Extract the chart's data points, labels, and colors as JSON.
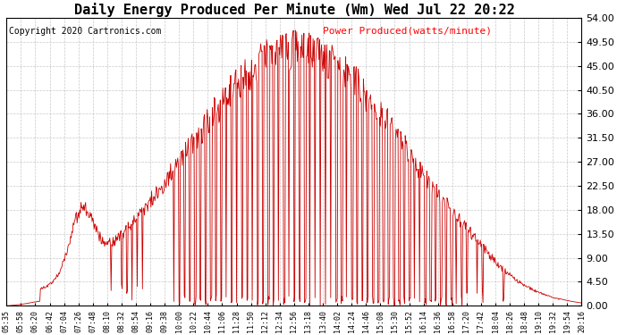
{
  "title": "Daily Energy Produced Per Minute (Wm) Wed Jul 22 20:22",
  "copyright": "Copyright 2020 Cartronics.com",
  "legend_label": "Power Produced(watts/minute)",
  "legend_color": "#ff0000",
  "line_color": "#cc0000",
  "background_color": "#ffffff",
  "plot_bg_color": "#ffffff",
  "grid_color": "#aaaaaa",
  "title_fontsize": 11,
  "copyright_fontsize": 7,
  "legend_fontsize": 8,
  "ytick_fontsize": 8,
  "xtick_fontsize": 6,
  "ymin": 0.0,
  "ymax": 54.0,
  "yticks": [
    0.0,
    4.5,
    9.0,
    13.5,
    18.0,
    22.5,
    27.0,
    31.5,
    36.0,
    40.5,
    45.0,
    49.5,
    54.0
  ],
  "xtick_labels": [
    "05:35",
    "05:58",
    "06:20",
    "06:42",
    "07:04",
    "07:26",
    "07:48",
    "08:10",
    "08:32",
    "08:54",
    "09:16",
    "09:38",
    "10:00",
    "10:22",
    "10:44",
    "11:06",
    "11:28",
    "11:50",
    "12:12",
    "12:34",
    "12:56",
    "13:18",
    "13:40",
    "14:02",
    "14:24",
    "14:46",
    "15:08",
    "15:30",
    "15:52",
    "16:14",
    "16:36",
    "16:58",
    "17:20",
    "17:42",
    "18:04",
    "18:26",
    "18:48",
    "19:10",
    "19:32",
    "19:54",
    "20:16"
  ]
}
